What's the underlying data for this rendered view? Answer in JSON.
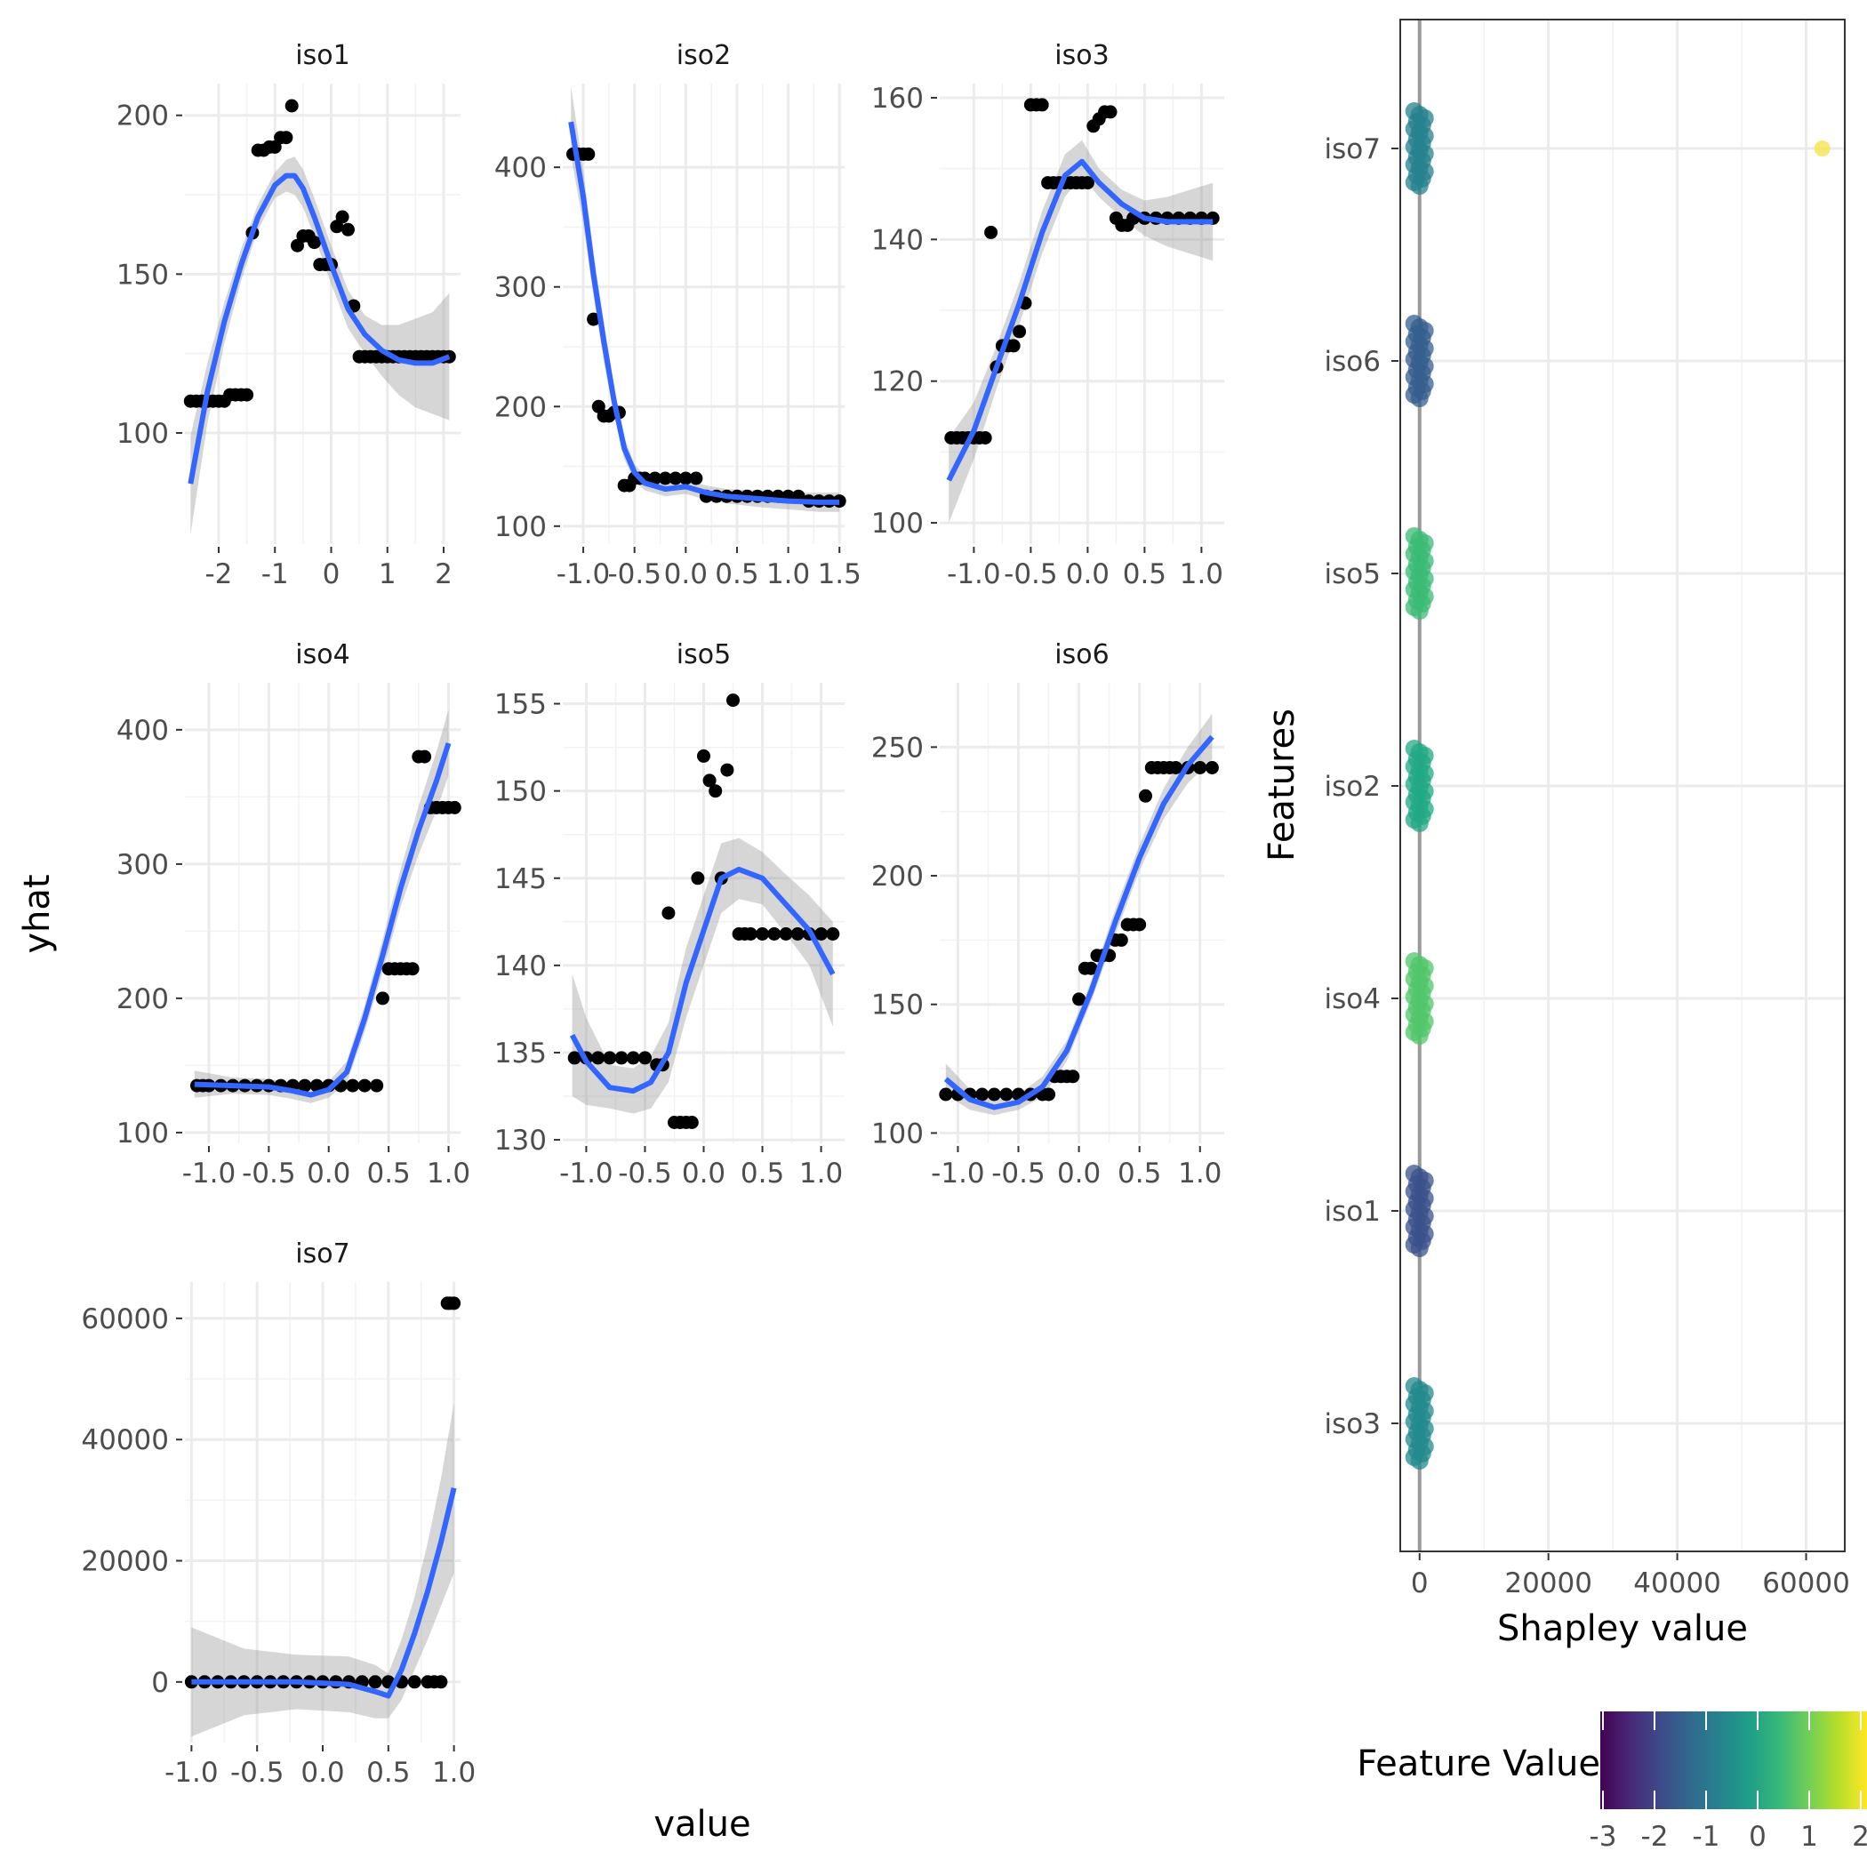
{
  "chart_data": [
    {
      "type": "scatter",
      "facet": "iso1",
      "xlim": [
        -2.6,
        2.3
      ],
      "ylim": [
        65,
        210
      ],
      "xticks": [
        -2,
        -1,
        0,
        1,
        2
      ],
      "xtick_labels": [
        "-2",
        "-1",
        "0",
        "1",
        "2"
      ],
      "yticks": [
        100,
        150,
        200
      ],
      "ytick_labels": [
        "100",
        "150",
        "200"
      ],
      "points": {
        "x": [
          -2.5,
          -2.4,
          -2.3,
          -2.2,
          -2.1,
          -2.0,
          -1.9,
          -1.8,
          -1.7,
          -1.6,
          -1.5,
          -1.4,
          -1.3,
          -1.2,
          -1.1,
          -1.0,
          -0.9,
          -0.8,
          -0.7,
          -0.6,
          -0.5,
          -0.4,
          -0.3,
          -0.2,
          -0.1,
          0.0,
          0.1,
          0.2,
          0.3,
          0.4,
          0.5,
          0.6,
          0.7,
          0.8,
          0.9,
          1.0,
          1.1,
          1.2,
          1.3,
          1.4,
          1.5,
          1.6,
          1.7,
          1.8,
          1.9,
          2.0,
          2.1
        ],
        "y": [
          110,
          110,
          110,
          110,
          110,
          110,
          110,
          112,
          112,
          112,
          112,
          163,
          189,
          189,
          190,
          190,
          193,
          193,
          203,
          159,
          162,
          162,
          160,
          153,
          153,
          153,
          165,
          168,
          164,
          140,
          124,
          124,
          124,
          124,
          124,
          124,
          124,
          124,
          124,
          124,
          124,
          124,
          124,
          124,
          124,
          124,
          124
        ]
      },
      "smooth": {
        "x": [
          -2.5,
          -2.2,
          -1.9,
          -1.6,
          -1.3,
          -1.0,
          -0.8,
          -0.65,
          -0.5,
          -0.3,
          0.0,
          0.3,
          0.6,
          0.9,
          1.2,
          1.5,
          1.8,
          2.1
        ],
        "y": [
          84,
          113,
          135,
          153,
          168,
          178,
          181,
          181,
          177,
          168,
          153,
          139,
          131,
          126,
          123,
          122,
          122,
          124
        ],
        "lo": [
          68,
          103,
          128,
          148,
          164,
          174,
          176,
          175,
          171,
          162,
          147,
          133,
          125,
          118,
          112,
          108,
          106,
          104
        ],
        "hi": [
          99,
          122,
          141,
          158,
          172,
          182,
          186,
          187,
          183,
          174,
          159,
          145,
          137,
          134,
          134,
          136,
          138,
          144
        ]
      }
    },
    {
      "type": "scatter",
      "facet": "iso2",
      "xlim": [
        -1.2,
        1.55
      ],
      "ylim": [
        85,
        470
      ],
      "xticks": [
        -1.0,
        -0.5,
        0.0,
        0.5,
        1.0,
        1.5
      ],
      "xtick_labels": [
        "-1.0",
        "-0.5",
        "0.0",
        "0.5",
        "1.0",
        "1.5"
      ],
      "yticks": [
        100,
        200,
        300,
        400
      ],
      "ytick_labels": [
        "100",
        "200",
        "300",
        "400"
      ],
      "points": {
        "x": [
          -1.1,
          -1.05,
          -1.0,
          -0.95,
          -0.9,
          -0.85,
          -0.8,
          -0.75,
          -0.7,
          -0.65,
          -0.6,
          -0.55,
          -0.5,
          -0.45,
          -0.4,
          -0.3,
          -0.2,
          -0.1,
          0.0,
          0.1,
          0.2,
          0.3,
          0.4,
          0.5,
          0.6,
          0.7,
          0.8,
          0.9,
          1.0,
          1.1,
          1.2,
          1.3,
          1.4,
          1.5
        ],
        "y": [
          411,
          411,
          411,
          411,
          273,
          200,
          192,
          192,
          195,
          195,
          134,
          134,
          140,
          140,
          140,
          140,
          140,
          140,
          140,
          140,
          125,
          125,
          125,
          125,
          125,
          125,
          125,
          125,
          125,
          125,
          121,
          121,
          121,
          121
        ]
      },
      "smooth": {
        "x": [
          -1.12,
          -1.0,
          -0.9,
          -0.8,
          -0.7,
          -0.6,
          -0.5,
          -0.4,
          -0.2,
          0.0,
          0.2,
          0.4,
          0.7,
          1.0,
          1.3,
          1.5
        ],
        "y": [
          438,
          375,
          310,
          255,
          205,
          165,
          145,
          136,
          131,
          133,
          128,
          125,
          123,
          121,
          120,
          120
        ],
        "lo": [
          410,
          352,
          292,
          238,
          193,
          156,
          138,
          130,
          125,
          127,
          122,
          119,
          116,
          114,
          112,
          112
        ],
        "hi": [
          468,
          398,
          328,
          272,
          217,
          174,
          152,
          142,
          137,
          139,
          134,
          131,
          130,
          128,
          128,
          128
        ]
      }
    },
    {
      "type": "scatter",
      "facet": "iso3",
      "xlim": [
        -1.3,
        1.2
      ],
      "ylim": [
        97,
        162
      ],
      "xticks": [
        -1.0,
        -0.5,
        0.0,
        0.5,
        1.0
      ],
      "xtick_labels": [
        "-1.0",
        "-0.5",
        "0.0",
        "0.5",
        "1.0"
      ],
      "yticks": [
        100,
        120,
        140,
        160
      ],
      "ytick_labels": [
        "100",
        "120",
        "140",
        "160"
      ],
      "points": {
        "x": [
          -1.2,
          -1.15,
          -1.1,
          -1.05,
          -1.0,
          -0.95,
          -0.9,
          -0.85,
          -0.8,
          -0.75,
          -0.7,
          -0.65,
          -0.6,
          -0.55,
          -0.5,
          -0.45,
          -0.4,
          -0.35,
          -0.3,
          -0.25,
          -0.2,
          -0.15,
          -0.1,
          -0.05,
          0.0,
          0.05,
          0.1,
          0.15,
          0.2,
          0.25,
          0.3,
          0.35,
          0.4,
          0.5,
          0.6,
          0.7,
          0.8,
          0.9,
          1.0,
          1.1
        ],
        "y": [
          112,
          112,
          112,
          112,
          112,
          112,
          112,
          141,
          122,
          125,
          125,
          125,
          127,
          131,
          159,
          159,
          159,
          148,
          148,
          148,
          148,
          148,
          148,
          148,
          148,
          156,
          157,
          158,
          158,
          143,
          142,
          142,
          143,
          143,
          143,
          143,
          143,
          143,
          143,
          143
        ]
      },
      "smooth": {
        "x": [
          -1.22,
          -1.0,
          -0.8,
          -0.6,
          -0.4,
          -0.2,
          -0.05,
          0.1,
          0.3,
          0.5,
          0.7,
          0.9,
          1.1
        ],
        "y": [
          106,
          113,
          122,
          131,
          141,
          149,
          151,
          148,
          145,
          143,
          142.5,
          142.5,
          142.5
        ],
        "lo": [
          100,
          109,
          119,
          128,
          138,
          146,
          149,
          146,
          143,
          140.5,
          139,
          138,
          137
        ],
        "hi": [
          112,
          117,
          125,
          134,
          144,
          152,
          154,
          150,
          147,
          145.5,
          146,
          147,
          148
        ]
      }
    },
    {
      "type": "scatter",
      "facet": "iso4",
      "xlim": [
        -1.2,
        1.1
      ],
      "ylim": [
        92,
        435
      ],
      "xticks": [
        -1.0,
        -0.5,
        0.0,
        0.5,
        1.0
      ],
      "xtick_labels": [
        "-1.0",
        "-0.5",
        "0.0",
        "0.5",
        "1.0"
      ],
      "yticks": [
        100,
        200,
        300,
        400
      ],
      "ytick_labels": [
        "100",
        "200",
        "300",
        "400"
      ],
      "points": {
        "x": [
          -1.1,
          -1.05,
          -1.0,
          -0.9,
          -0.8,
          -0.7,
          -0.6,
          -0.5,
          -0.4,
          -0.3,
          -0.2,
          -0.1,
          0.0,
          0.1,
          0.2,
          0.3,
          0.4,
          0.45,
          0.5,
          0.55,
          0.6,
          0.65,
          0.7,
          0.75,
          0.8,
          0.85,
          0.9,
          0.95,
          1.0,
          1.05
        ],
        "y": [
          135,
          135,
          135,
          135,
          135,
          135,
          135,
          135,
          135,
          135,
          135,
          135,
          135,
          135,
          135,
          135,
          135,
          200,
          222,
          222,
          222,
          222,
          222,
          380,
          380,
          342,
          342,
          342,
          342,
          342
        ]
      },
      "smooth": {
        "x": [
          -1.12,
          -0.8,
          -0.5,
          -0.3,
          -0.15,
          0.0,
          0.15,
          0.3,
          0.45,
          0.6,
          0.75,
          0.9,
          1.0
        ],
        "y": [
          136,
          135,
          134,
          131,
          128,
          132,
          145,
          185,
          232,
          282,
          325,
          362,
          390
        ],
        "lo": [
          126,
          129,
          128,
          125,
          122,
          126,
          137,
          175,
          220,
          268,
          307,
          340,
          366
        ],
        "hi": [
          146,
          141,
          140,
          137,
          134,
          138,
          153,
          195,
          244,
          296,
          343,
          384,
          415
        ]
      }
    },
    {
      "type": "scatter",
      "facet": "iso5",
      "xlim": [
        -1.2,
        1.2
      ],
      "ylim": [
        129.8,
        156.2
      ],
      "xticks": [
        -1.0,
        -0.5,
        0.0,
        0.5,
        1.0
      ],
      "xtick_labels": [
        "-1.0",
        "-0.5",
        "0.0",
        "0.5",
        "1.0"
      ],
      "yticks": [
        130,
        135,
        140,
        145,
        150,
        155
      ],
      "ytick_labels": [
        "130",
        "135",
        "140",
        "145",
        "150",
        "155"
      ],
      "points": {
        "x": [
          -1.1,
          -1.0,
          -0.9,
          -0.8,
          -0.7,
          -0.6,
          -0.5,
          -0.4,
          -0.35,
          -0.3,
          -0.25,
          -0.2,
          -0.15,
          -0.1,
          -0.05,
          0.0,
          0.05,
          0.1,
          0.15,
          0.2,
          0.25,
          0.3,
          0.35,
          0.4,
          0.5,
          0.6,
          0.7,
          0.8,
          0.9,
          1.0,
          1.1
        ],
        "y": [
          134.7,
          134.7,
          134.7,
          134.7,
          134.7,
          134.7,
          134.7,
          134.3,
          134.3,
          143,
          131,
          131,
          131,
          131,
          145,
          152,
          150.6,
          150,
          145,
          151.2,
          155.2,
          141.8,
          141.8,
          141.8,
          141.8,
          141.8,
          141.8,
          141.8,
          141.8,
          141.8,
          141.8
        ]
      },
      "smooth": {
        "x": [
          -1.12,
          -1.0,
          -0.8,
          -0.6,
          -0.45,
          -0.3,
          -0.15,
          0.0,
          0.15,
          0.3,
          0.5,
          0.7,
          0.9,
          1.1
        ],
        "y": [
          136.0,
          134.5,
          133.0,
          132.8,
          133.3,
          135.0,
          139.0,
          142.0,
          145.0,
          145.5,
          145.0,
          143.5,
          142.0,
          139.5
        ],
        "lo": [
          132.5,
          132.0,
          131.8,
          131.5,
          131.8,
          133.3,
          137.0,
          140.0,
          143.0,
          143.8,
          143.5,
          141.8,
          140.0,
          136.5
        ],
        "hi": [
          139.5,
          137.0,
          134.3,
          134.1,
          134.8,
          136.7,
          141.0,
          144.0,
          147.0,
          147.3,
          146.5,
          145.2,
          144.0,
          142.5
        ]
      }
    },
    {
      "type": "scatter",
      "facet": "iso6",
      "xlim": [
        -1.15,
        1.2
      ],
      "ylim": [
        96,
        275
      ],
      "xticks": [
        -1.0,
        -0.5,
        0.0,
        0.5,
        1.0
      ],
      "xtick_labels": [
        "-1.0",
        "-0.5",
        "0.0",
        "0.5",
        "1.0"
      ],
      "yticks": [
        100,
        150,
        200,
        250
      ],
      "ytick_labels": [
        "100",
        "150",
        "200",
        "250"
      ],
      "points": {
        "x": [
          -1.1,
          -1.0,
          -0.9,
          -0.8,
          -0.7,
          -0.6,
          -0.5,
          -0.4,
          -0.3,
          -0.25,
          -0.2,
          -0.15,
          -0.1,
          -0.05,
          0.0,
          0.05,
          0.1,
          0.15,
          0.2,
          0.25,
          0.3,
          0.35,
          0.4,
          0.45,
          0.5,
          0.55,
          0.6,
          0.65,
          0.7,
          0.75,
          0.8,
          0.9,
          1.0,
          1.1
        ],
        "y": [
          115,
          115,
          115,
          115,
          115,
          115,
          115,
          115,
          115,
          115,
          122,
          122,
          122,
          122,
          152,
          164,
          164,
          169,
          169,
          169,
          175,
          175,
          181,
          181,
          181,
          231,
          242,
          242,
          242,
          242,
          242,
          242,
          242,
          242
        ]
      },
      "smooth": {
        "x": [
          -1.1,
          -0.9,
          -0.7,
          -0.5,
          -0.3,
          -0.1,
          0.1,
          0.3,
          0.5,
          0.7,
          0.9,
          1.1
        ],
        "y": [
          121,
          113,
          110,
          112,
          118,
          132,
          155,
          182,
          207,
          228,
          243,
          254
        ],
        "lo": [
          115,
          109,
          107,
          109,
          114,
          128,
          151,
          177,
          202,
          222,
          236,
          245
        ],
        "hi": [
          127,
          117,
          113,
          115,
          122,
          136,
          159,
          187,
          212,
          234,
          250,
          263
        ]
      }
    },
    {
      "type": "scatter",
      "facet": "iso7",
      "xlim": [
        -1.05,
        1.05
      ],
      "ylim": [
        -10000,
        66000
      ],
      "xticks": [
        -1.0,
        -0.5,
        0.0,
        0.5,
        1.0
      ],
      "xtick_labels": [
        "-1.0",
        "-0.5",
        "0.0",
        "0.5",
        "1.0"
      ],
      "yticks": [
        0,
        20000,
        40000,
        60000
      ],
      "ytick_labels": [
        "0",
        "20000",
        "40000",
        "60000"
      ],
      "points": {
        "x": [
          -1.0,
          -0.9,
          -0.8,
          -0.7,
          -0.6,
          -0.5,
          -0.4,
          -0.3,
          -0.2,
          -0.1,
          0.0,
          0.1,
          0.2,
          0.3,
          0.4,
          0.5,
          0.6,
          0.7,
          0.8,
          0.85,
          0.9,
          0.95,
          0.97,
          1.0
        ],
        "y": [
          0,
          0,
          0,
          0,
          0,
          0,
          0,
          0,
          0,
          0,
          0,
          0,
          0,
          0,
          0,
          0,
          0,
          0,
          0,
          0,
          0,
          62500,
          62500,
          62500
        ]
      },
      "smooth": {
        "x": [
          -1.0,
          -0.6,
          -0.2,
          0.2,
          0.4,
          0.5,
          0.6,
          0.7,
          0.8,
          0.9,
          1.0
        ],
        "y": [
          0,
          0,
          0,
          -400,
          -1600,
          -2300,
          2000,
          8000,
          15000,
          23000,
          32000
        ],
        "lo": [
          -9000,
          -5500,
          -4500,
          -5000,
          -6000,
          -6000,
          -3000,
          2000,
          7000,
          12500,
          18000
        ],
        "hi": [
          9000,
          5500,
          4500,
          4200,
          2800,
          1400,
          7000,
          14000,
          23000,
          33500,
          46000
        ]
      }
    },
    {
      "type": "scatter",
      "facet": "shapley",
      "xlabel": "Shapley value",
      "ylabel": "Features",
      "xlim": [
        -3000,
        66000
      ],
      "xticks": [
        0,
        20000,
        40000,
        60000
      ],
      "xtick_labels": [
        "0",
        "20000",
        "40000",
        "60000"
      ],
      "features": [
        "iso7",
        "iso6",
        "iso5",
        "iso2",
        "iso4",
        "iso1",
        "iso3"
      ],
      "feature_colors": [
        "#26828e",
        "#355f8d",
        "#3bbb75",
        "#22a884",
        "#52c569",
        "#3b528b",
        "#238a8d"
      ],
      "outlier": {
        "feature": "iso7",
        "x": 62500,
        "color": "#f5e65a"
      },
      "legend": {
        "title": "Feature Value",
        "ticks": [
          "-3",
          "-2",
          "-1",
          "0",
          "1",
          "2"
        ],
        "colors": [
          "#440154",
          "#482878",
          "#3e4a89",
          "#31688e",
          "#26828e",
          "#1f9e89",
          "#35b779",
          "#6ece58",
          "#b5de2b",
          "#fde725"
        ]
      }
    }
  ],
  "labels": {
    "y_axis": "yhat",
    "x_axis": "value"
  }
}
